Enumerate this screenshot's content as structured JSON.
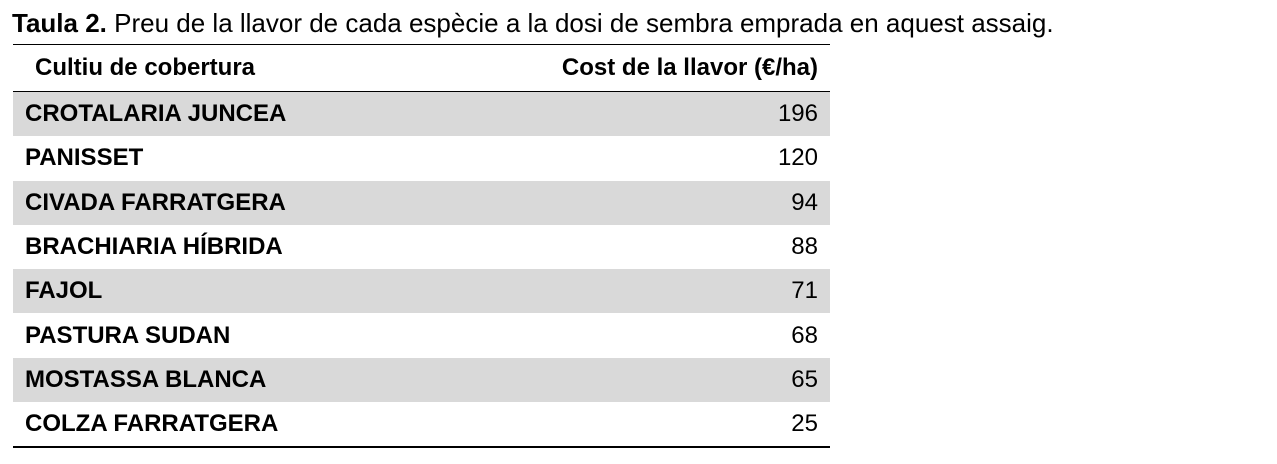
{
  "caption": {
    "label": "Taula 2.",
    "text": "Preu de la llavor de cada espècie a la dosi de sembra emprada en aquest assaig."
  },
  "table": {
    "header": [
      "Cultiu de cobertura",
      "Cost de la llavor (€/ha)"
    ],
    "rows": [
      [
        "CROTALARIA JUNCEA",
        196
      ],
      [
        "PANISSET",
        120
      ],
      [
        "CIVADA FARRATGERA",
        94
      ],
      [
        "BRACHIARIA HÍBRIDA",
        88
      ],
      [
        "FAJOL",
        71
      ],
      [
        "PASTURA SUDAN",
        68
      ],
      [
        "MOSTASSA BLANCA",
        65
      ],
      [
        "COLZA FARRATGERA",
        25
      ]
    ]
  }
}
